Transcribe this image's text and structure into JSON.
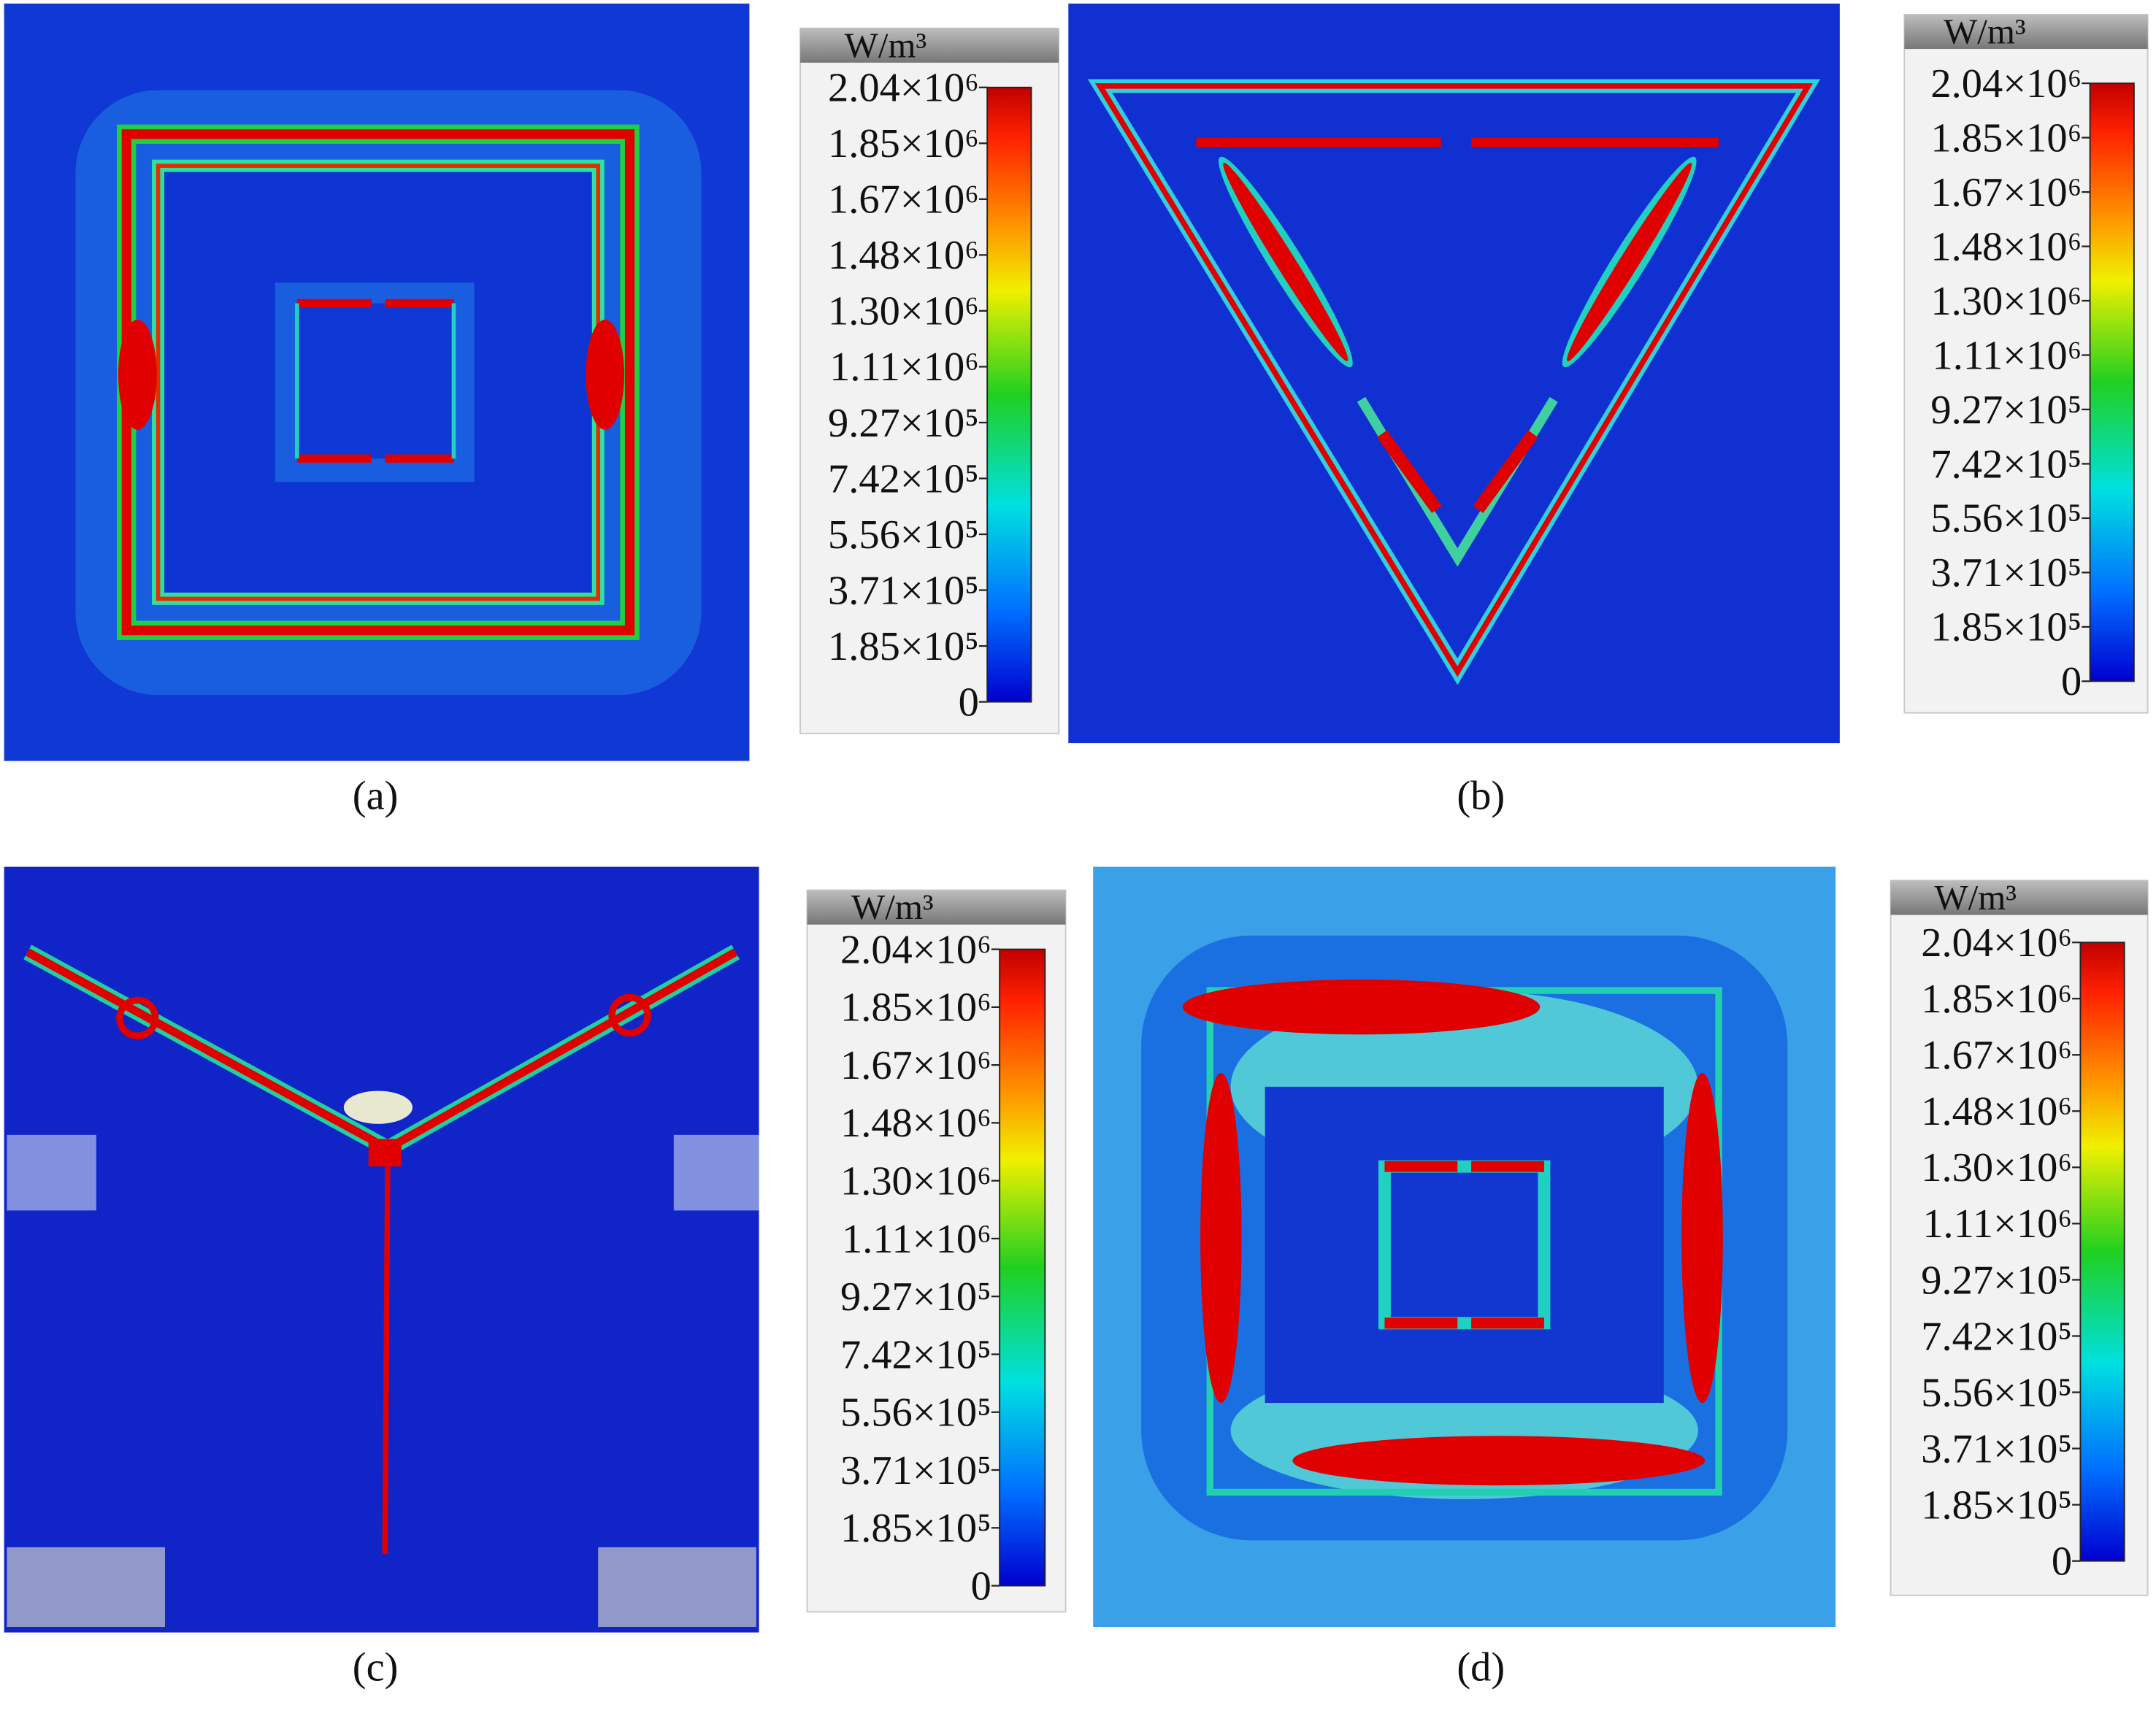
{
  "panels": [
    {
      "label": "(a)",
      "unit": "W/m³",
      "ticks": [
        "2.04×10⁶",
        "1.85×10⁶",
        "1.67×10⁶",
        "1.48×10⁶",
        "1.30×10⁶",
        "1.11×10⁶",
        "9.27×10⁵",
        "7.42×10⁵",
        "5.56×10⁵",
        "3.71×10⁵",
        "1.85×10⁵",
        "0"
      ]
    },
    {
      "label": "(b)",
      "unit": "W/m³",
      "ticks": [
        "2.04×10⁶",
        "1.85×10⁶",
        "1.67×10⁶",
        "1.48×10⁶",
        "1.30×10⁶",
        "1.11×10⁶",
        "9.27×10⁵",
        "7.42×10⁵",
        "5.56×10⁵",
        "3.71×10⁵",
        "1.85×10⁵",
        "0"
      ]
    },
    {
      "label": "(c)",
      "unit": "W/m³",
      "ticks": [
        "2.04×10⁶",
        "1.85×10⁶",
        "1.67×10⁶",
        "1.48×10⁶",
        "1.30×10⁶",
        "1.11×10⁶",
        "9.27×10⁵",
        "7.42×10⁵",
        "5.56×10⁵",
        "3.71×10⁵",
        "1.85×10⁵",
        "0"
      ]
    },
    {
      "label": "(d)",
      "unit": "W/m³",
      "ticks": [
        "2.04×10⁶",
        "1.85×10⁶",
        "1.67×10⁶",
        "1.48×10⁶",
        "1.30×10⁶",
        "1.11×10⁶",
        "9.27×10⁵",
        "7.42×10⁵",
        "5.56×10⁵",
        "3.71×10⁵",
        "1.85×10⁵",
        "0"
      ]
    }
  ]
}
